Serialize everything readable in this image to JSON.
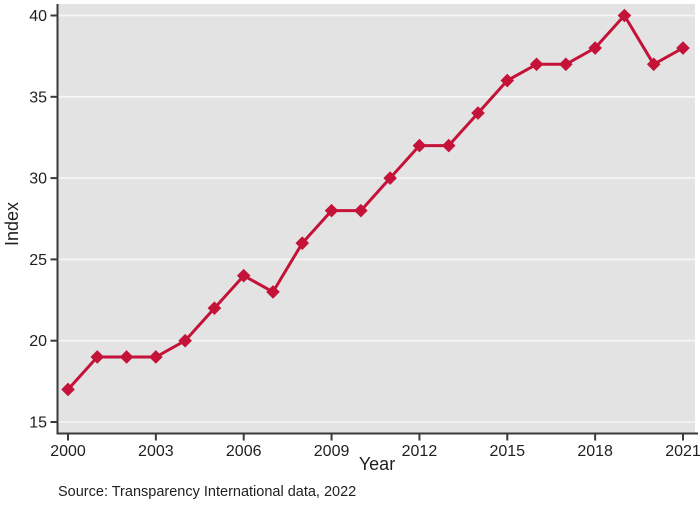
{
  "chart_data": {
    "type": "line",
    "title": "",
    "xlabel": "Year",
    "ylabel": "Index",
    "source_note": "Source: Transparency International data, 2022",
    "x": [
      2000,
      2001,
      2002,
      2003,
      2004,
      2005,
      2006,
      2007,
      2008,
      2009,
      2010,
      2011,
      2012,
      2013,
      2014,
      2015,
      2016,
      2017,
      2018,
      2019,
      2020,
      2021
    ],
    "series": [
      {
        "name": "Index",
        "values": [
          17,
          19,
          19,
          19,
          20,
          22,
          24,
          23,
          26,
          28,
          28,
          30,
          32,
          32,
          34,
          36,
          37,
          37,
          38,
          40,
          37,
          38
        ]
      }
    ],
    "xlim": [
      2000,
      2021
    ],
    "ylim": [
      15,
      40
    ],
    "xticks": [
      2000,
      2003,
      2006,
      2009,
      2012,
      2015,
      2018,
      2021
    ],
    "yticks": [
      15,
      20,
      25,
      30,
      35,
      40
    ],
    "grid": "horizontal",
    "legend": "none",
    "marker": "diamond",
    "colors": {
      "line": "#c41239",
      "marker": "#c41239",
      "plot_bg": "#e3e3e3",
      "gridline": "#f6f6f6",
      "axis": "#3a3a3a",
      "text": "#1f1f1f",
      "page_bg": "#ffffff"
    }
  }
}
